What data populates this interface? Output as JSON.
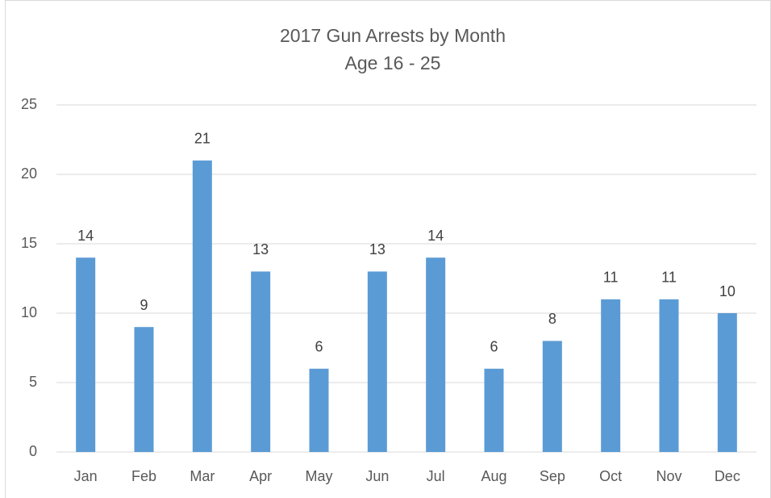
{
  "chart_data": {
    "type": "bar",
    "title": "2017 Gun Arrests by Month",
    "subtitle": "Age 16 - 25",
    "categories": [
      "Jan",
      "Feb",
      "Mar",
      "Apr",
      "May",
      "Jun",
      "Jul",
      "Aug",
      "Sep",
      "Oct",
      "Nov",
      "Dec"
    ],
    "values": [
      14,
      9,
      21,
      13,
      6,
      13,
      14,
      6,
      8,
      11,
      11,
      10
    ],
    "color": "#5b9bd5",
    "ylim": [
      0,
      25
    ],
    "yticks": [
      0,
      5,
      10,
      15,
      20,
      25
    ],
    "grid": true,
    "data_labels": true
  }
}
